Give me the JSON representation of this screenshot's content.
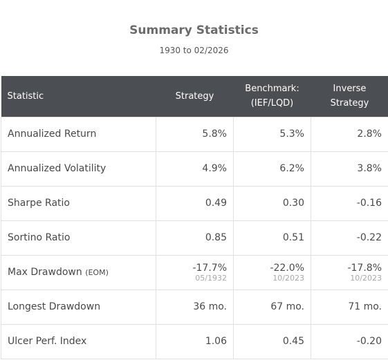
{
  "title": "Summary Statistics",
  "subtitle": "1930 to 02/2026",
  "headers": {
    "statistic": "Statistic",
    "strategy": "Strategy",
    "benchmark_line1": "Benchmark:",
    "benchmark_line2": "(IEF/LQD)",
    "inverse_line1": "Inverse",
    "inverse_line2": "Strategy"
  },
  "rows": {
    "annualized_return": {
      "label": "Annualized Return",
      "strategy": "5.8%",
      "benchmark": "5.3%",
      "inverse": "2.8%"
    },
    "annualized_volatility": {
      "label": "Annualized Volatility",
      "strategy": "4.9%",
      "benchmark": "6.2%",
      "inverse": "3.8%"
    },
    "sharpe_ratio": {
      "label": "Sharpe Ratio",
      "strategy": "0.49",
      "benchmark": "0.30",
      "inverse": "-0.16"
    },
    "sortino_ratio": {
      "label": "Sortino Ratio",
      "strategy": "0.85",
      "benchmark": "0.51",
      "inverse": "-0.22"
    },
    "max_drawdown": {
      "label": "Max Drawdown",
      "label_note": "(EOM)",
      "strategy": "-17.7%",
      "strategy_date": "05/1932",
      "benchmark": "-22.0%",
      "benchmark_date": "10/2023",
      "inverse": "-17.8%",
      "inverse_date": "10/2023"
    },
    "longest_drawdown": {
      "label": "Longest Drawdown",
      "strategy": "36 mo.",
      "benchmark": "67 mo.",
      "inverse": "71 mo."
    },
    "ulcer_perf_index": {
      "label": "Ulcer Perf. Index",
      "strategy": "1.06",
      "benchmark": "0.45",
      "inverse": "-0.20"
    }
  },
  "colors": {
    "header_bg": "#4b4f54",
    "border": "#e0e0e0",
    "date_text": "#a8a8a8"
  }
}
